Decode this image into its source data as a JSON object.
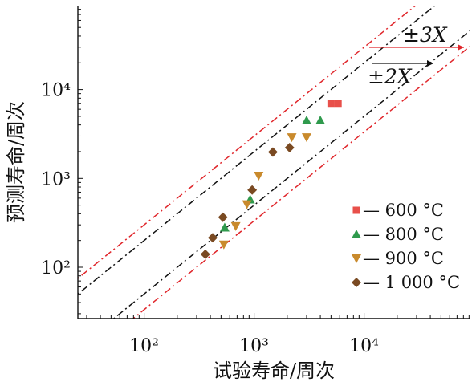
{
  "chart_data": {
    "type": "scatter",
    "xlabel": "试验寿命/周次",
    "ylabel": "预测寿命/周次",
    "xscale": "log",
    "yscale": "log",
    "xlim": [
      25,
      90000
    ],
    "ylim": [
      25,
      90000
    ],
    "xticks": [
      {
        "value": 100,
        "label": "10²"
      },
      {
        "value": 1000,
        "label": "10³"
      },
      {
        "value": 10000,
        "label": "10⁴"
      }
    ],
    "yticks": [
      {
        "value": 100,
        "label": "10²"
      },
      {
        "value": 1000,
        "label": "10³"
      },
      {
        "value": 10000,
        "label": "10⁴"
      }
    ],
    "grid": false,
    "legend_position": "lower-right",
    "bands": [
      {
        "label": "±2X",
        "factor": 2,
        "color": "#111111",
        "dash": "dash-dot"
      },
      {
        "label": "±3X",
        "factor": 3,
        "color": "#e0262b",
        "dash": "dash-dot"
      }
    ],
    "series": [
      {
        "name": "— 600 °C",
        "marker": "square",
        "color": "#e8504a",
        "points": [
          [
            5000,
            7000
          ],
          [
            5800,
            7000
          ]
        ]
      },
      {
        "name": "— 800 °C",
        "marker": "triangle-up",
        "color": "#2f9a4d",
        "points": [
          [
            540,
            280
          ],
          [
            920,
            580
          ],
          [
            3000,
            4500
          ],
          [
            4000,
            4500
          ]
        ]
      },
      {
        "name": "— 900 °C",
        "marker": "triangle-down",
        "color": "#c98a2c",
        "points": [
          [
            530,
            180
          ],
          [
            680,
            290
          ],
          [
            860,
            510
          ],
          [
            1100,
            1070
          ],
          [
            2200,
            2900
          ],
          [
            3000,
            2900
          ]
        ]
      },
      {
        "name": "— 1 000 °C",
        "marker": "diamond",
        "color": "#7a4a22",
        "points": [
          [
            360,
            140
          ],
          [
            420,
            215
          ],
          [
            520,
            365
          ],
          [
            960,
            740
          ],
          [
            1480,
            1980
          ],
          [
            2100,
            2220
          ]
        ]
      }
    ]
  }
}
